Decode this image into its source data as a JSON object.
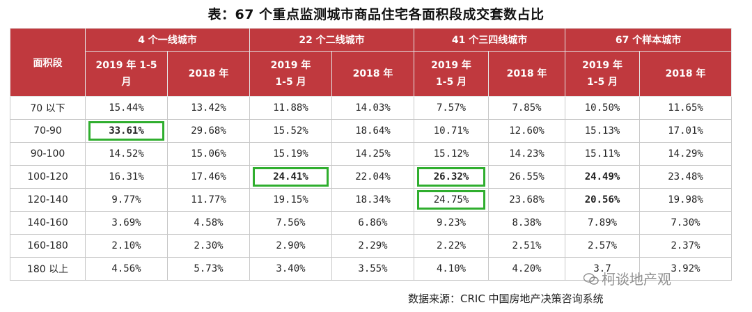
{
  "title": "表：67 个重点监测城市商品住宅各面积段成交套数占比",
  "header": {
    "segment_label": "面积段",
    "groups": [
      "4 个一线城市",
      "22 个二线城市",
      "41 个三四线城市",
      "67 个样本城市"
    ],
    "sub": [
      [
        "2019 年 1-5",
        "月",
        "2018 年"
      ],
      [
        "2019 年",
        "1-5 月",
        "2018 年"
      ],
      [
        "2019 年",
        "1-5 月",
        "2018 年"
      ],
      [
        "2019 年",
        "1-5 月",
        "2018 年"
      ]
    ]
  },
  "rows": [
    {
      "segment": "70 以下",
      "values": [
        "15.44%",
        "13.42%",
        "11.88%",
        "14.03%",
        "7.57%",
        "7.85%",
        "10.50%",
        "11.65%"
      ]
    },
    {
      "segment": "70-90",
      "values": [
        "33.61%",
        "29.68%",
        "15.52%",
        "18.64%",
        "10.71%",
        "12.60%",
        "15.13%",
        "17.01%"
      ]
    },
    {
      "segment": "90-100",
      "values": [
        "14.52%",
        "15.06%",
        "15.19%",
        "14.25%",
        "15.12%",
        "14.23%",
        "15.11%",
        "14.29%"
      ]
    },
    {
      "segment": "100-120",
      "values": [
        "16.31%",
        "17.46%",
        "24.41%",
        "22.04%",
        "26.32%",
        "26.55%",
        "24.49%",
        "23.48%"
      ]
    },
    {
      "segment": "120-140",
      "values": [
        "9.77%",
        "11.77%",
        "19.15%",
        "18.34%",
        "24.75%",
        "23.68%",
        "20.56%",
        "19.98%"
      ]
    },
    {
      "segment": "140-160",
      "values": [
        "3.69%",
        "4.58%",
        "7.56%",
        "6.86%",
        "9.23%",
        "8.38%",
        "7.89%",
        "7.30%"
      ]
    },
    {
      "segment": "160-180",
      "values": [
        "2.10%",
        "2.30%",
        "2.90%",
        "2.29%",
        "2.22%",
        "2.51%",
        "2.57%",
        "2.37%"
      ]
    },
    {
      "segment": "180 以上",
      "values": [
        "4.56%",
        "5.73%",
        "3.40%",
        "3.55%",
        "4.10%",
        "4.20%",
        "3.7",
        "3.92%"
      ]
    }
  ],
  "styles": [
    [
      "red",
      "",
      "",
      "",
      "",
      "",
      "",
      ""
    ],
    [
      "boldred",
      "",
      "",
      "",
      "",
      "",
      "",
      ""
    ],
    [
      "",
      "",
      "red",
      "",
      "red",
      "",
      "red",
      ""
    ],
    [
      "",
      "",
      "boldred",
      "",
      "bold",
      "",
      "boldred",
      ""
    ],
    [
      "",
      "",
      "red",
      "",
      "red",
      "",
      "boldred",
      ""
    ],
    [
      "",
      "",
      "red",
      "",
      "red",
      "",
      "red",
      ""
    ],
    [
      "",
      "",
      "red",
      "",
      "",
      "",
      "red",
      ""
    ],
    [
      "",
      "",
      "",
      "",
      "",
      "",
      "",
      ""
    ]
  ],
  "highlights": [
    [
      1,
      0
    ],
    [
      3,
      2
    ],
    [
      3,
      4
    ],
    [
      4,
      4
    ]
  ],
  "colors": {
    "header_bg": "#c0393e",
    "highlight_red": "#c0393e",
    "box_green": "#2fae2e"
  },
  "footer": "数据来源：CRIC 中国房地产决策咨询系统",
  "watermark": "柯谈地产观"
}
